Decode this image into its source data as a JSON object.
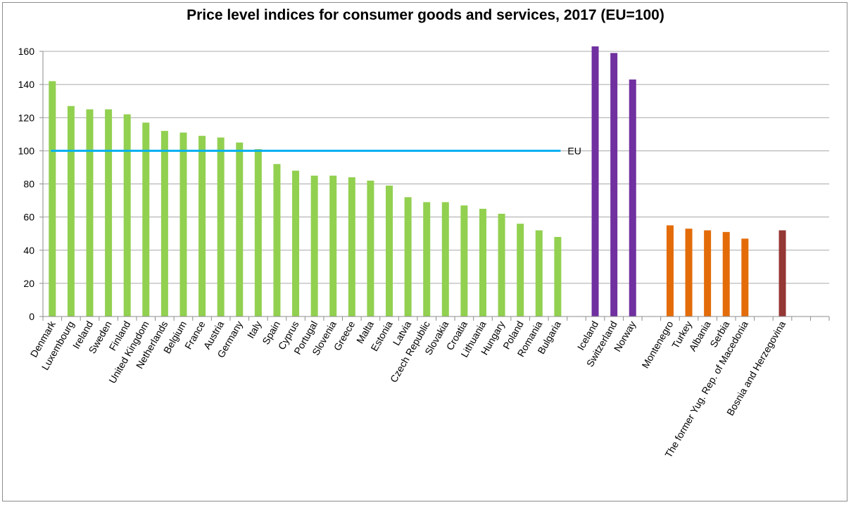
{
  "chart_data": {
    "type": "bar",
    "title": "Price level indices for consumer goods and services, 2017 (EU=100)",
    "xlabel": "",
    "ylabel": "",
    "ylim": [
      0,
      160
    ],
    "yticks": [
      0,
      20,
      40,
      60,
      80,
      100,
      120,
      140,
      160
    ],
    "grid": true,
    "legend": "none",
    "reference_line": {
      "value": 100,
      "label": "EU",
      "color": "#00b0f0"
    },
    "bars": [
      {
        "slot": 0,
        "category": "Denmark",
        "value": 142,
        "color": "#92d050"
      },
      {
        "slot": 1,
        "category": "Luxembourg",
        "value": 127,
        "color": "#92d050"
      },
      {
        "slot": 2,
        "category": "Ireland",
        "value": 125,
        "color": "#92d050"
      },
      {
        "slot": 3,
        "category": "Sweden",
        "value": 125,
        "color": "#92d050"
      },
      {
        "slot": 4,
        "category": "Finland",
        "value": 122,
        "color": "#92d050"
      },
      {
        "slot": 5,
        "category": "United Kingdom",
        "value": 117,
        "color": "#92d050"
      },
      {
        "slot": 6,
        "category": "Netherlands",
        "value": 112,
        "color": "#92d050"
      },
      {
        "slot": 7,
        "category": "Belgium",
        "value": 111,
        "color": "#92d050"
      },
      {
        "slot": 8,
        "category": "France",
        "value": 109,
        "color": "#92d050"
      },
      {
        "slot": 9,
        "category": "Austria",
        "value": 108,
        "color": "#92d050"
      },
      {
        "slot": 10,
        "category": "Germany",
        "value": 105,
        "color": "#92d050"
      },
      {
        "slot": 11,
        "category": "Italy",
        "value": 101,
        "color": "#92d050"
      },
      {
        "slot": 12,
        "category": "Spain",
        "value": 92,
        "color": "#92d050"
      },
      {
        "slot": 13,
        "category": "Cyprus",
        "value": 88,
        "color": "#92d050"
      },
      {
        "slot": 14,
        "category": "Portugal",
        "value": 85,
        "color": "#92d050"
      },
      {
        "slot": 15,
        "category": "Slovenia",
        "value": 85,
        "color": "#92d050"
      },
      {
        "slot": 16,
        "category": "Greece",
        "value": 84,
        "color": "#92d050"
      },
      {
        "slot": 17,
        "category": "Malta",
        "value": 82,
        "color": "#92d050"
      },
      {
        "slot": 18,
        "category": "Estonia",
        "value": 79,
        "color": "#92d050"
      },
      {
        "slot": 19,
        "category": "Latvia",
        "value": 72,
        "color": "#92d050"
      },
      {
        "slot": 20,
        "category": "Czech Republic",
        "value": 69,
        "color": "#92d050"
      },
      {
        "slot": 21,
        "category": "Slovakia",
        "value": 69,
        "color": "#92d050"
      },
      {
        "slot": 22,
        "category": "Croatia",
        "value": 67,
        "color": "#92d050"
      },
      {
        "slot": 23,
        "category": "Lithuania",
        "value": 65,
        "color": "#92d050"
      },
      {
        "slot": 24,
        "category": "Hungary",
        "value": 62,
        "color": "#92d050"
      },
      {
        "slot": 25,
        "category": "Poland",
        "value": 56,
        "color": "#92d050"
      },
      {
        "slot": 26,
        "category": "Romania",
        "value": 52,
        "color": "#92d050"
      },
      {
        "slot": 27,
        "category": "Bulgaria",
        "value": 48,
        "color": "#92d050"
      },
      {
        "slot": 29,
        "category": "Iceland",
        "value": 163,
        "color": "#7030a0"
      },
      {
        "slot": 30,
        "category": "Switzerland",
        "value": 159,
        "color": "#7030a0"
      },
      {
        "slot": 31,
        "category": "Norway",
        "value": 143,
        "color": "#7030a0"
      },
      {
        "slot": 33,
        "category": "Montenegro",
        "value": 55,
        "color": "#e36c09"
      },
      {
        "slot": 34,
        "category": "Turkey",
        "value": 53,
        "color": "#e36c09"
      },
      {
        "slot": 35,
        "category": "Albania",
        "value": 52,
        "color": "#e36c09"
      },
      {
        "slot": 36,
        "category": "Serbia",
        "value": 51,
        "color": "#e36c09"
      },
      {
        "slot": 37,
        "category": "The former Yug. Rep. of Macedonia",
        "value": 47,
        "color": "#e36c09"
      },
      {
        "slot": 39,
        "category": "Bosnia and Herzegovina",
        "value": 52,
        "color": "#953735"
      }
    ],
    "slot_count": 42
  }
}
